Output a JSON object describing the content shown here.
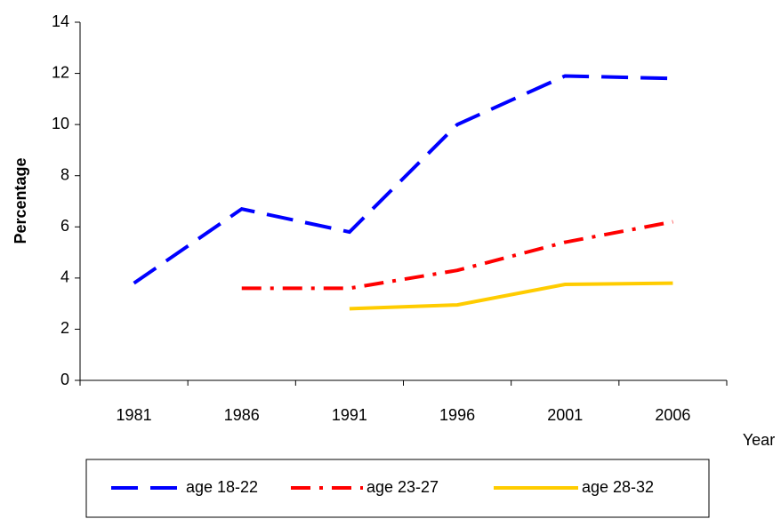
{
  "chart_data": {
    "type": "line",
    "x_label": "Year",
    "y_label": "Percentage",
    "categories": [
      "1981",
      "1986",
      "1991",
      "1996",
      "2001",
      "2006"
    ],
    "series": [
      {
        "name": "age 18-22",
        "color": "#0000ff",
        "dash": "long",
        "values": [
          3.8,
          6.7,
          5.8,
          10.0,
          11.9,
          11.8
        ]
      },
      {
        "name": "age 23-27",
        "color": "#ff0000",
        "dash": "dash-dot",
        "values": [
          null,
          3.6,
          3.6,
          4.3,
          5.4,
          6.2
        ]
      },
      {
        "name": "age 28-32",
        "color": "#ffcc00",
        "dash": "solid",
        "values": [
          null,
          null,
          2.8,
          2.95,
          3.75,
          3.8
        ]
      }
    ],
    "ylim": [
      0,
      14
    ],
    "yticks": [
      0,
      2,
      4,
      6,
      8,
      10,
      12,
      14
    ],
    "grid": false,
    "legend": "bottom"
  }
}
